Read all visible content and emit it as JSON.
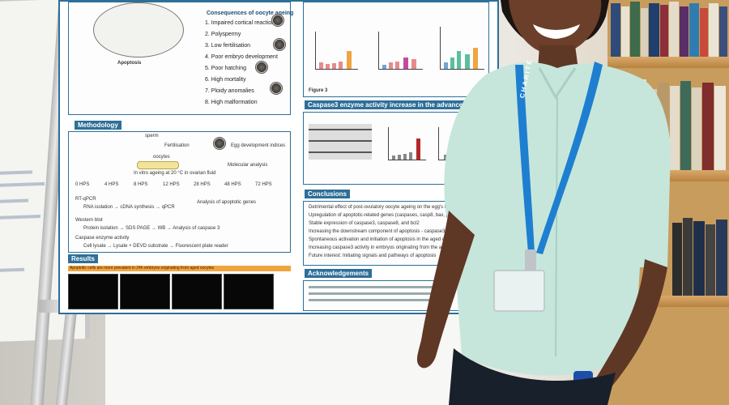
{
  "poster": {
    "consequences_title": "Consequences of oocyte ageing",
    "consequences_items": [
      "1. Impaired cortical reaction",
      "2. Polyspermy",
      "3. Low fertilisation",
      "4. Poor embryo development",
      "5. Poor hatching",
      "6. High mortality",
      "7. Ploidy anomalies",
      "8. High malformation"
    ],
    "apoptosis_label": "Apoptosis",
    "methodology_title": "Methodology",
    "methodology_labels": {
      "sperm": "sperm",
      "fertilisation": "Fertilisation",
      "egg_dev": "Egg development indices",
      "oocytes": "oocytes",
      "in_vitro": "In vitro ageing at 20 °C in ovarian fluid",
      "molecular": "Molecular analysis",
      "hps": [
        "0 HPS",
        "4 HPS",
        "8 HPS",
        "12 HPS",
        "28 HPS",
        "48 HPS",
        "72 HPS"
      ],
      "rt_qpcr": "RT-qPCR",
      "rna": "RNA isolation → cDNA synthesis → qPCR",
      "analysis_genes": "Analysis of apoptotic genes",
      "western": "Western blot",
      "protein": "Protein isolation → SDS PAGE → WB → Analysis of caspase 3",
      "caspase": "Caspase enzyme activity",
      "cell_lysate": "Cell lysate → Lysate + DEVD substrate → Fluorescent plate reader"
    },
    "caspase_title": "Caspase3 enzyme activity increase in the advanced stages of oocyte ageing",
    "results_title": "Results",
    "results_subtitle": "Apoptotic cells are more prevalent in 24h embryos originating from aged oocytes",
    "conclusions_title": "Conclusions",
    "conclusions_items": [
      "Detrimental effect of post-ovulatory oocyte ageing on the egg's bioenergetic state",
      "Upregulation of apoptotic-related genes (caspases, casp8, bax, p53) under in vitro aged common carp oocytes",
      "Stable expression of caspase3, caspase8, and bcl2",
      "Increasing the downstream component of apoptosis - caspase3",
      "Spontaneous activation and initiation of apoptosis in the aged oocytes",
      "Increasing caspase3 activity in embryos originating from the aged oocytes",
      "Future interest: Initiating signals and pathways of apoptosis"
    ],
    "acknowledgements_title": "Acknowledgements",
    "figure_label": "Figure 3"
  },
  "lanyard": {
    "text": "CHARITÉ"
  },
  "colors": {
    "poster_blue": "#2d6f98",
    "lanyard_blue": "#1e7fd0",
    "shirt": "#c6e6dc",
    "accent_orange": "#f0a540"
  }
}
